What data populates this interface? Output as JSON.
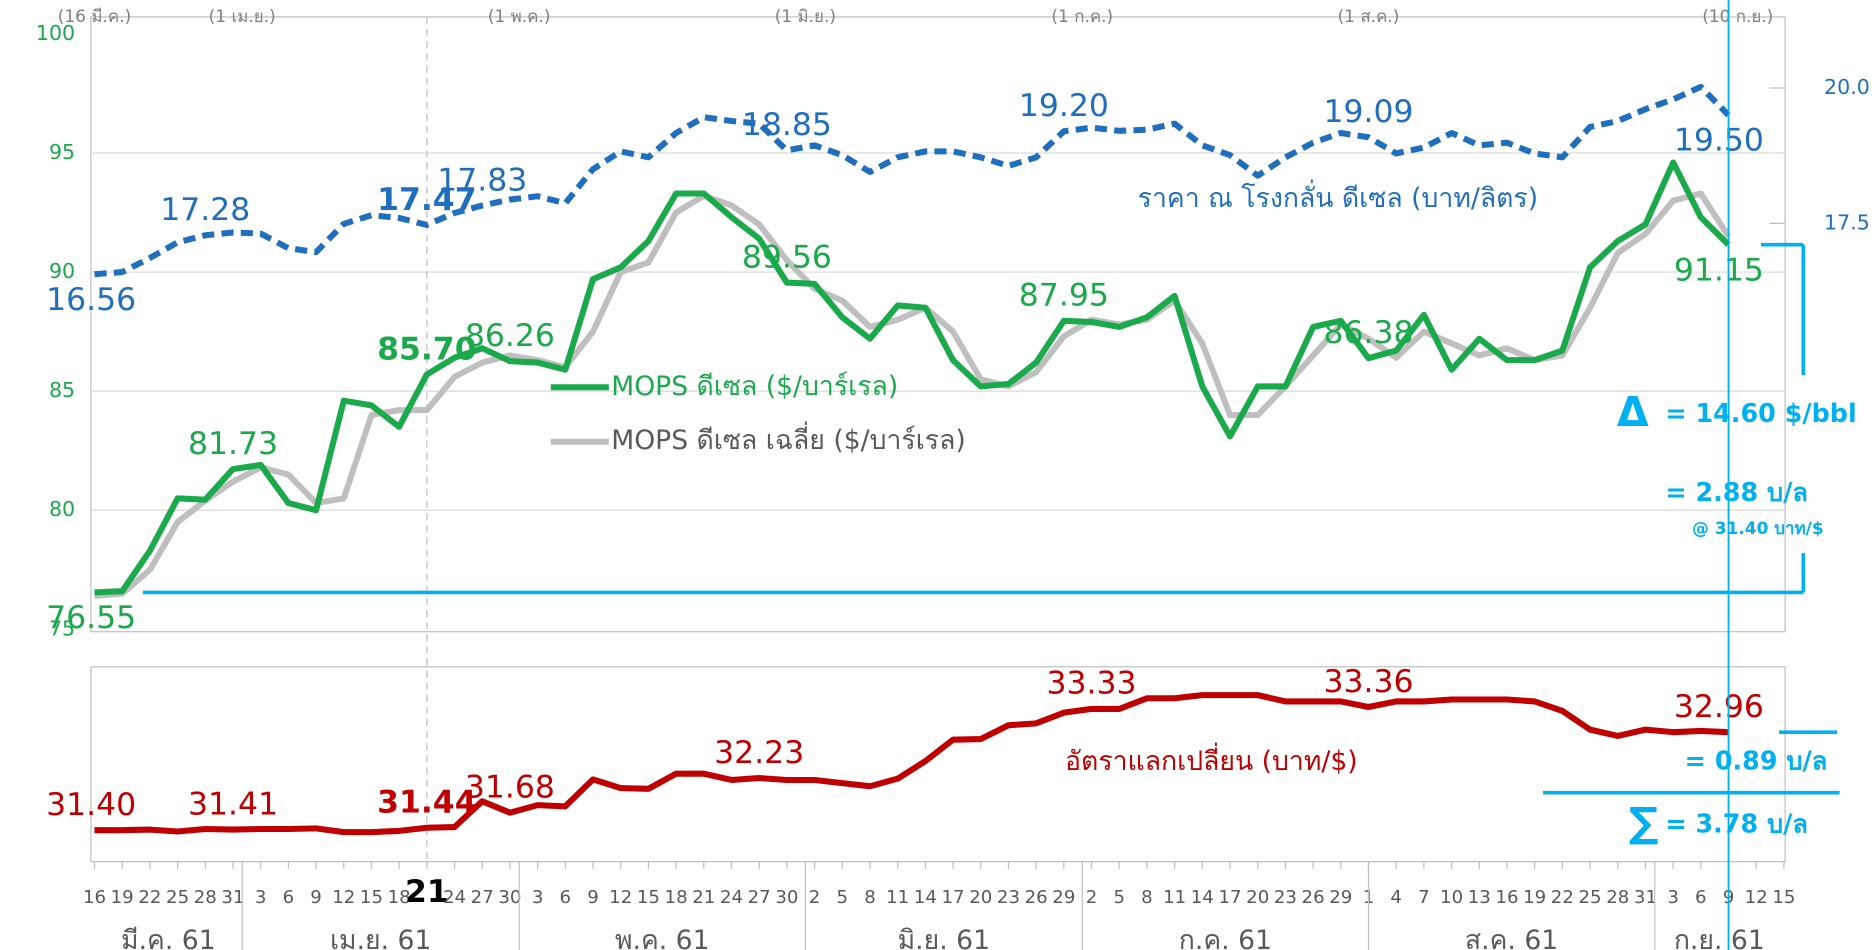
{
  "chart_data": [
    {
      "type": "line",
      "xlim": [
        0,
        183
      ],
      "ylim": [
        75,
        100
      ],
      "yticks": [
        75,
        80,
        85,
        90,
        95,
        100
      ],
      "y2lim": [
        10,
        21
      ],
      "y2ticks": [
        {
          "value": 17.5,
          "label": "17.5"
        },
        {
          "value": 20,
          "label": "20.0"
        }
      ],
      "grid": true,
      "x": [
        0,
        3,
        6,
        9,
        12,
        15,
        18,
        21,
        24,
        27,
        30,
        33,
        36,
        39,
        42,
        45,
        48,
        51,
        54,
        57,
        60,
        63,
        66,
        69,
        72,
        75,
        78,
        81,
        84,
        87,
        90,
        93,
        96,
        99,
        102,
        105,
        108,
        111,
        114,
        117,
        120,
        123,
        126,
        129,
        132,
        135,
        138,
        141,
        144,
        147,
        150,
        153,
        156,
        159,
        162,
        165,
        168,
        171,
        174,
        177
      ],
      "series": [
        {
          "name": "ราคา ณ โรงกลั่น ดีเซล (บาท/ลิตร)",
          "color": "#1f6fbe",
          "axis": "y2",
          "dash": true,
          "values": [
            16.56,
            16.6,
            16.86,
            17.15,
            17.28,
            17.33,
            17.31,
            17.04,
            16.97,
            17.49,
            17.65,
            17.6,
            17.47,
            17.69,
            17.83,
            17.94,
            18.0,
            17.87,
            18.5,
            18.83,
            18.72,
            19.17,
            19.46,
            19.39,
            19.34,
            18.85,
            18.94,
            18.76,
            18.45,
            18.72,
            18.83,
            18.83,
            18.72,
            18.56,
            18.72,
            19.2,
            19.27,
            19.21,
            19.23,
            19.34,
            18.94,
            18.76,
            18.38,
            18.72,
            18.99,
            19.17,
            19.09,
            18.79,
            18.9,
            19.17,
            18.94,
            18.99,
            18.79,
            18.72,
            19.28,
            19.39,
            19.61,
            19.79,
            20.02,
            19.5
          ],
          "value_labels": [
            "16.56",
            null,
            null,
            null,
            "17.28",
            null,
            null,
            null,
            null,
            null,
            null,
            null,
            "17.47",
            null,
            "17.83",
            null,
            null,
            null,
            null,
            null,
            null,
            null,
            null,
            null,
            null,
            "18.85",
            null,
            null,
            null,
            null,
            null,
            null,
            null,
            null,
            null,
            "19.20",
            null,
            null,
            null,
            null,
            null,
            null,
            null,
            null,
            null,
            null,
            "19.09",
            null,
            null,
            null,
            null,
            null,
            null,
            null,
            null,
            null,
            null,
            null,
            null,
            "19.50"
          ]
        },
        {
          "name": "MOPS ดีเซล ($/บาร์เรล)",
          "color": "#1aaa4b",
          "values": [
            76.55,
            76.6,
            78.3,
            80.5,
            80.44,
            81.73,
            81.9,
            80.3,
            80.0,
            84.6,
            84.4,
            83.5,
            85.7,
            86.4,
            86.8,
            86.26,
            86.2,
            85.9,
            89.7,
            90.2,
            91.3,
            93.3,
            93.3,
            92.3,
            91.4,
            89.56,
            89.5,
            88.1,
            87.2,
            88.6,
            88.5,
            86.3,
            85.2,
            85.3,
            86.2,
            87.95,
            87.9,
            87.7,
            88.1,
            89.0,
            85.2,
            83.1,
            85.2,
            85.2,
            87.7,
            87.95,
            86.38,
            86.7,
            88.2,
            85.9,
            87.2,
            86.3,
            86.3,
            86.7,
            90.2,
            91.3,
            92.0,
            94.6,
            92.3,
            91.15
          ],
          "value_labels": [
            "76.55",
            null,
            null,
            null,
            null,
            "81.73",
            null,
            null,
            null,
            null,
            null,
            null,
            "85.70",
            null,
            null,
            "86.26",
            null,
            null,
            null,
            null,
            null,
            null,
            null,
            null,
            null,
            "89.56",
            null,
            null,
            null,
            null,
            null,
            null,
            null,
            null,
            null,
            "87.95",
            null,
            null,
            null,
            null,
            null,
            null,
            null,
            null,
            null,
            null,
            "86.38",
            null,
            null,
            null,
            null,
            null,
            null,
            null,
            null,
            null,
            null,
            null,
            null,
            "91.15"
          ]
        },
        {
          "name": "MOPS ดีเซล เฉลี่ย ($/บาร์เรล)",
          "color": "#bfbfbf",
          "values": [
            76.4,
            76.5,
            77.5,
            79.5,
            80.4,
            81.2,
            81.8,
            81.5,
            80.3,
            80.5,
            84.0,
            84.2,
            84.2,
            85.6,
            86.2,
            86.5,
            86.3,
            86.0,
            87.5,
            90.0,
            90.4,
            92.5,
            93.2,
            92.8,
            92.0,
            90.5,
            89.3,
            88.8,
            87.7,
            88.0,
            88.5,
            87.5,
            85.5,
            85.2,
            85.8,
            87.3,
            88.0,
            87.8,
            88.0,
            88.8,
            87.0,
            84.0,
            84.0,
            85.2,
            86.5,
            87.8,
            87.2,
            86.4,
            87.5,
            87.0,
            86.5,
            86.8,
            86.3,
            86.5,
            88.5,
            90.8,
            91.6,
            93.0,
            93.3,
            91.5
          ]
        }
      ],
      "period_labels": [
        {
          "x": 0,
          "label": "(16 มี.ค.)"
        },
        {
          "x": 16,
          "label": "(1 เม.ย.)"
        },
        {
          "x": 46,
          "label": "(1 พ.ค.)"
        },
        {
          "x": 77,
          "label": "(1 มิ.ย.)"
        },
        {
          "x": 107,
          "label": "(1 ก.ค.)"
        },
        {
          "x": 138,
          "label": "(1 ส.ค.)"
        },
        {
          "x": 178,
          "label": "(10 ก.ย.)"
        }
      ],
      "annotations": {
        "delta_symbol": "Δ",
        "delta_usd": "= 14.60 $/bbl",
        "delta_thb": "= 2.88 บ/ล",
        "fx_note": "@ 31.40 บาท/$"
      }
    },
    {
      "type": "line",
      "xlim": [
        0,
        183
      ],
      "ylim": [
        30.9,
        34.0
      ],
      "highlight_x": 36,
      "x": [
        0,
        3,
        6,
        9,
        12,
        15,
        18,
        21,
        24,
        27,
        30,
        33,
        36,
        39,
        42,
        45,
        48,
        51,
        54,
        57,
        60,
        63,
        66,
        69,
        72,
        75,
        78,
        81,
        84,
        87,
        90,
        93,
        96,
        99,
        102,
        105,
        108,
        111,
        114,
        117,
        120,
        123,
        126,
        129,
        132,
        135,
        138,
        141,
        144,
        147,
        150,
        153,
        156,
        159,
        162,
        165,
        168,
        171,
        174,
        177
      ],
      "series": [
        {
          "name": "อัตราแลกเปลี่ยน (บาท/$)",
          "color": "#c00000",
          "values": [
            31.4,
            31.4,
            31.41,
            31.38,
            31.42,
            31.41,
            31.42,
            31.42,
            31.43,
            31.37,
            31.37,
            31.39,
            31.44,
            31.45,
            31.86,
            31.68,
            31.8,
            31.78,
            32.21,
            32.07,
            32.06,
            32.3,
            32.3,
            32.2,
            32.23,
            32.2,
            32.2,
            32.15,
            32.1,
            32.22,
            32.5,
            32.84,
            32.85,
            33.07,
            33.1,
            33.27,
            33.33,
            33.33,
            33.5,
            33.5,
            33.55,
            33.55,
            33.55,
            33.45,
            33.45,
            33.45,
            33.36,
            33.45,
            33.45,
            33.48,
            33.48,
            33.48,
            33.45,
            33.3,
            33.0,
            32.9,
            33.0,
            32.96,
            32.98,
            32.96
          ],
          "value_labels": [
            "31.40",
            null,
            null,
            null,
            null,
            "31.41",
            null,
            null,
            null,
            null,
            null,
            null,
            "31.44",
            null,
            null,
            "31.68",
            null,
            null,
            null,
            null,
            null,
            null,
            null,
            null,
            "32.23",
            null,
            null,
            null,
            null,
            null,
            null,
            null,
            null,
            null,
            null,
            null,
            "33.33",
            null,
            null,
            null,
            null,
            null,
            null,
            null,
            null,
            null,
            "33.36",
            null,
            null,
            null,
            null,
            null,
            null,
            null,
            null,
            null,
            null,
            null,
            null,
            "32.96"
          ]
        }
      ],
      "xticks": [
        {
          "value": 0,
          "label": "16"
        },
        {
          "value": 3,
          "label": "19"
        },
        {
          "value": 6,
          "label": "22"
        },
        {
          "value": 9,
          "label": "25"
        },
        {
          "value": 12,
          "label": "28"
        },
        {
          "value": 15,
          "label": "31"
        },
        {
          "value": 18,
          "label": "3"
        },
        {
          "value": 21,
          "label": "6"
        },
        {
          "value": 24,
          "label": "9"
        },
        {
          "value": 27,
          "label": "12"
        },
        {
          "value": 30,
          "label": "15"
        },
        {
          "value": 33,
          "label": "18"
        },
        {
          "value": 36,
          "label": "21"
        },
        {
          "value": 39,
          "label": "24"
        },
        {
          "value": 42,
          "label": "27"
        },
        {
          "value": 45,
          "label": "30"
        },
        {
          "value": 48,
          "label": "3"
        },
        {
          "value": 51,
          "label": "6"
        },
        {
          "value": 54,
          "label": "9"
        },
        {
          "value": 57,
          "label": "12"
        },
        {
          "value": 60,
          "label": "15"
        },
        {
          "value": 63,
          "label": "18"
        },
        {
          "value": 66,
          "label": "21"
        },
        {
          "value": 69,
          "label": "24"
        },
        {
          "value": 72,
          "label": "27"
        },
        {
          "value": 75,
          "label": "30"
        },
        {
          "value": 78,
          "label": "2"
        },
        {
          "value": 81,
          "label": "5"
        },
        {
          "value": 84,
          "label": "8"
        },
        {
          "value": 87,
          "label": "11"
        },
        {
          "value": 90,
          "label": "14"
        },
        {
          "value": 93,
          "label": "17"
        },
        {
          "value": 96,
          "label": "20"
        },
        {
          "value": 99,
          "label": "23"
        },
        {
          "value": 102,
          "label": "26"
        },
        {
          "value": 105,
          "label": "29"
        },
        {
          "value": 108,
          "label": "2"
        },
        {
          "value": 111,
          "label": "5"
        },
        {
          "value": 114,
          "label": "8"
        },
        {
          "value": 117,
          "label": "11"
        },
        {
          "value": 120,
          "label": "14"
        },
        {
          "value": 123,
          "label": "17"
        },
        {
          "value": 126,
          "label": "20"
        },
        {
          "value": 129,
          "label": "23"
        },
        {
          "value": 132,
          "label": "26"
        },
        {
          "value": 135,
          "label": "29"
        },
        {
          "value": 138,
          "label": "1"
        },
        {
          "value": 141,
          "label": "4"
        },
        {
          "value": 144,
          "label": "7"
        },
        {
          "value": 147,
          "label": "10"
        },
        {
          "value": 150,
          "label": "13"
        },
        {
          "value": 153,
          "label": "16"
        },
        {
          "value": 156,
          "label": "19"
        },
        {
          "value": 159,
          "label": "22"
        },
        {
          "value": 162,
          "label": "25"
        },
        {
          "value": 165,
          "label": "28"
        },
        {
          "value": 168,
          "label": "31"
        },
        {
          "value": 171,
          "label": "3"
        },
        {
          "value": 174,
          "label": "6"
        },
        {
          "value": 177,
          "label": "9"
        },
        {
          "value": 180,
          "label": "12"
        },
        {
          "value": 183,
          "label": "15"
        }
      ],
      "months": [
        {
          "name": "มี.ค. 61",
          "start": 0,
          "end": 16
        },
        {
          "name": "เม.ย. 61",
          "start": 16,
          "end": 46
        },
        {
          "name": "พ.ค. 61",
          "start": 46,
          "end": 77
        },
        {
          "name": "มิ.ย. 61",
          "start": 77,
          "end": 107
        },
        {
          "name": "ก.ค. 61",
          "start": 107,
          "end": 138
        },
        {
          "name": "ส.ค. 61",
          "start": 138,
          "end": 169
        },
        {
          "name": "ก.ย. 61",
          "start": 169,
          "end": 183
        }
      ],
      "annotations": {
        "fx_effect": "= 0.89 บ/ล",
        "sum_symbol": "∑",
        "sum": "= 3.78 บ/ล"
      }
    }
  ]
}
